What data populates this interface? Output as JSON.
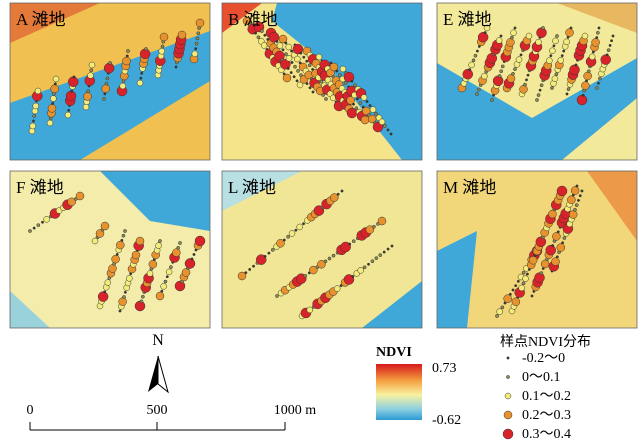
{
  "panels": [
    {
      "label": "A 滩地"
    },
    {
      "label": "B 滩地"
    },
    {
      "label": "E 滩地"
    },
    {
      "label": "F 滩地"
    },
    {
      "label": "L 滩地"
    },
    {
      "label": "M 滩地"
    }
  ],
  "north": "N",
  "scale_bar": {
    "labels": [
      "0",
      "500",
      "1000 m"
    ]
  },
  "colorbar": {
    "title": "NDVI",
    "max": "0.73",
    "min": "-0.62"
  },
  "legend": {
    "title": "样点NDVI分布",
    "items": [
      "-0.2～0",
      "0～0.1",
      "0.1～0.2",
      "0.2～0.3",
      "0.3～0.4"
    ]
  }
}
